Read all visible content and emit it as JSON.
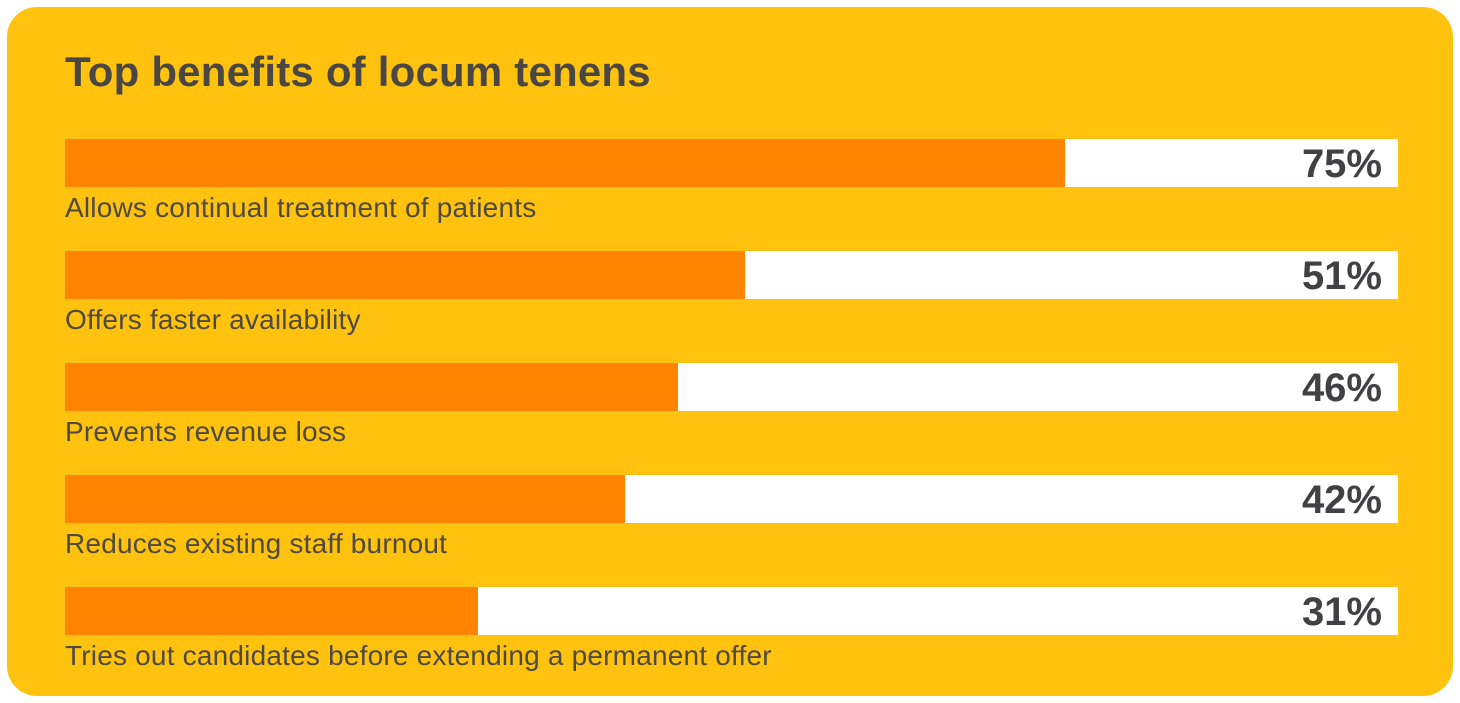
{
  "title": "Top benefits of locum tenens",
  "colors": {
    "background": "#FFC20E",
    "bar_fill": "#FF8400",
    "bar_track": "#FFFFFF",
    "title_text": "#4A4742",
    "value_text": "#414042",
    "label_text": "#4E4A40"
  },
  "chart_data": {
    "type": "bar",
    "orientation": "horizontal",
    "title": "Top benefits of locum tenens",
    "categories": [
      "Allows continual treatment of patients",
      "Offers faster availability",
      "Prevents revenue loss",
      "Reduces existing staff burnout",
      "Tries out candidates before extending a permanent offer"
    ],
    "values": [
      75,
      51,
      46,
      42,
      31
    ],
    "value_labels": [
      "75%",
      "51%",
      "46%",
      "42%",
      "31%"
    ],
    "xlabel": "",
    "ylabel": "",
    "xlim": [
      0,
      100
    ],
    "grid": false,
    "legend": false,
    "value_label_position": "inside-track-right"
  }
}
